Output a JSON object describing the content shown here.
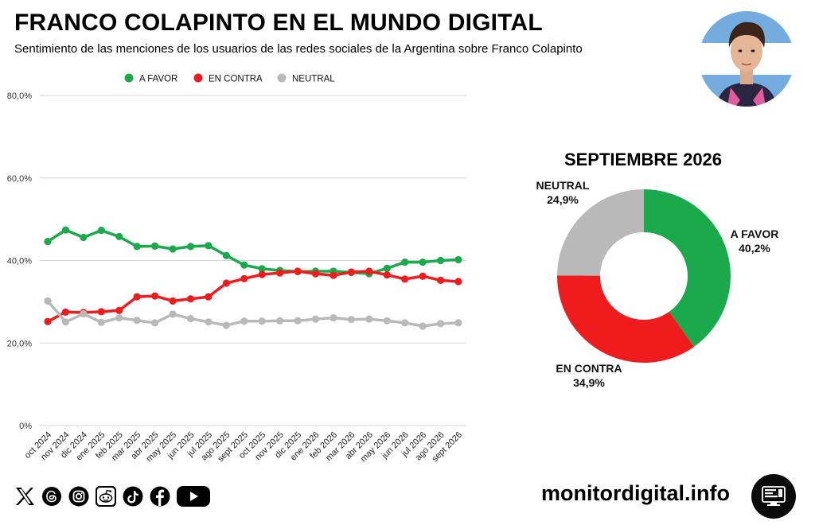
{
  "header": {
    "title": "FRANCO COLAPINTO EN EL MUNDO DIGITAL",
    "subtitle": "Sentimiento de las menciones de los usuarios de las redes sociales de la Argentina sobre Franco Colapinto"
  },
  "chart_data": [
    {
      "type": "line",
      "x": [
        "oct 2024",
        "nov 2024",
        "dic 2024",
        "ene 2025",
        "feb 2025",
        "mar 2025",
        "abr 2025",
        "may 2025",
        "jun 2025",
        "jul 2025",
        "ago 2025",
        "sept 2025",
        "oct 2025",
        "nov 2025",
        "dic 2025",
        "ene 2026",
        "feb 2026",
        "mar 2026",
        "abr 2026",
        "may 2026",
        "jun 2026",
        "jul 2026",
        "ago 2026",
        "sept 2026"
      ],
      "series": [
        {
          "name": "A FAVOR",
          "color": "#1aaa4b",
          "values": [
            44.6,
            47.4,
            45.6,
            47.3,
            45.8,
            43.4,
            43.5,
            42.8,
            43.4,
            43.6,
            41.2,
            38.9,
            38.0,
            37.6,
            37.3,
            37.4,
            37.4,
            37.1,
            36.8,
            38.1,
            39.6,
            39.6,
            40.0,
            40.2
          ]
        },
        {
          "name": "EN CONTRA",
          "color": "#ee1c1c",
          "values": [
            25.2,
            27.5,
            27.4,
            27.6,
            27.9,
            31.2,
            31.4,
            30.2,
            30.7,
            31.2,
            34.5,
            35.6,
            36.6,
            37.0,
            37.4,
            36.8,
            36.4,
            37.2,
            37.4,
            36.5,
            35.5,
            36.2,
            35.2,
            34.9
          ]
        },
        {
          "name": "NEUTRAL",
          "color": "#b9b9b9",
          "values": [
            30.2,
            25.1,
            27.1,
            25.0,
            26.1,
            25.5,
            24.9,
            27.0,
            25.9,
            25.1,
            24.3,
            25.3,
            25.3,
            25.4,
            25.4,
            25.8,
            26.1,
            25.7,
            25.8,
            25.4,
            24.9,
            24.1,
            24.7,
            24.9
          ]
        }
      ],
      "y_ticks": [
        "0%",
        "20,0%",
        "40,0%",
        "60,0%",
        "80,0%"
      ],
      "ylim": [
        0,
        80
      ],
      "grid": true,
      "legend": "top"
    },
    {
      "type": "pie",
      "title": "SEPTIEMBRE 2026",
      "slices": [
        {
          "label": "A FAVOR",
          "value": 40.2,
          "value_label": "40,2%",
          "color": "#1aaa4b"
        },
        {
          "label": "EN CONTRA",
          "value": 34.9,
          "value_label": "34,9%",
          "color": "#ee1c1c"
        },
        {
          "label": "NEUTRAL",
          "value": 24.9,
          "value_label": "24,9%",
          "color": "#b9b9b9"
        }
      ]
    }
  ],
  "footer": {
    "site": "monitordigital.info",
    "social_icons": [
      "x-icon",
      "threads-icon",
      "instagram-icon",
      "reddit-icon",
      "tiktok-icon",
      "facebook-icon",
      "youtube-icon"
    ]
  }
}
